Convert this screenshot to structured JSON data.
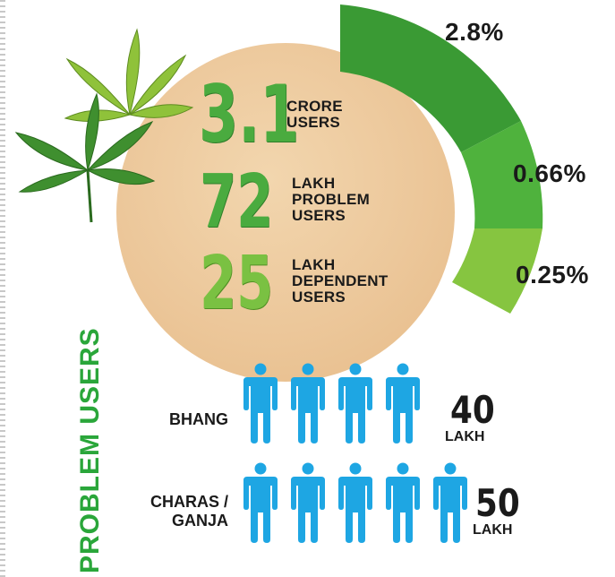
{
  "stats": [
    {
      "number": "3.1",
      "label_lines": [
        "CRORE",
        "USERS"
      ],
      "percent": "2.8%"
    },
    {
      "number": "72",
      "label_lines": [
        "LAKH",
        "PROBLEM",
        "USERS"
      ],
      "percent": "0.66%"
    },
    {
      "number": "25",
      "label_lines": [
        "LAKH",
        "DEPENDENT",
        "USERS"
      ],
      "percent": "0.25%"
    }
  ],
  "problem_users": {
    "title": "PROBLEM USERS",
    "rows": [
      {
        "drug_lines": [
          "BHANG"
        ],
        "icon_count": 4,
        "value": "40",
        "unit": "LAKH"
      },
      {
        "drug_lines": [
          "CHARAS /",
          "GANJA"
        ],
        "icon_count": 5,
        "value": "50",
        "unit": "LAKH"
      }
    ]
  },
  "colors": {
    "arc_dark": "#3a9a34",
    "arc_mid": "#4fb23d",
    "arc_light": "#86c540",
    "person": "#1ea6e3",
    "title_green": "#2aa63a",
    "circle": "#ecc79a"
  },
  "icons": {
    "leaf": "cannabis-leaf-icon",
    "person": "person-icon"
  }
}
